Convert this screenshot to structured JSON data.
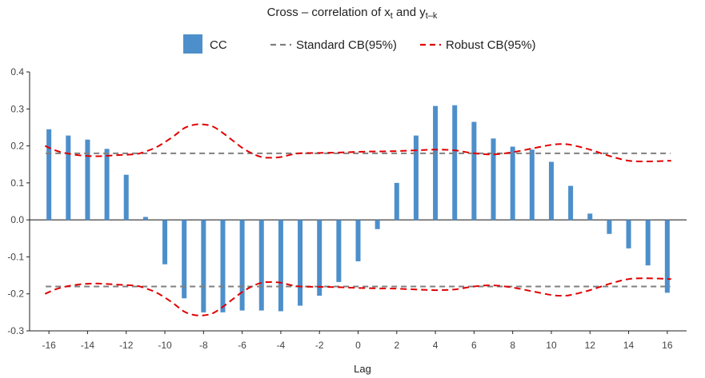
{
  "chart_data": {
    "type": "bar",
    "title_main": "Cross – correlation of x",
    "title_sub_x": "t",
    "title_and": " and y",
    "title_sub_y": "t–k",
    "xlabel": "Lag",
    "ylabel": "",
    "xlim": [
      -17,
      17
    ],
    "ylim": [
      -0.3,
      0.4
    ],
    "x_ticks": [
      -16,
      -14,
      -12,
      -10,
      -8,
      -6,
      -4,
      -2,
      0,
      2,
      4,
      6,
      8,
      10,
      12,
      14,
      16
    ],
    "y_ticks": [
      -0.3,
      -0.2,
      -0.1,
      0.0,
      0.1,
      0.2,
      0.3,
      0.4
    ],
    "y_tick_labels": [
      "-0.3",
      "-0.2",
      "-0.1",
      "0.0",
      "0.1",
      "0.2",
      "0.3",
      "0.4"
    ],
    "x_tick_labels": [
      "-16",
      "-14",
      "-12",
      "-10",
      "-8",
      "-6",
      "-4",
      "-2",
      "0",
      "2",
      "4",
      "6",
      "8",
      "10",
      "12",
      "14",
      "16"
    ],
    "lags": [
      -16,
      -15,
      -14,
      -13,
      -12,
      -11,
      -10,
      -9,
      -8,
      -7,
      -6,
      -5,
      -4,
      -3,
      -2,
      -1,
      0,
      1,
      2,
      3,
      4,
      5,
      6,
      7,
      8,
      9,
      10,
      11,
      12,
      13,
      14,
      15,
      16
    ],
    "cc_values": [
      0.245,
      0.228,
      0.217,
      0.192,
      0.122,
      0.008,
      -0.12,
      -0.212,
      -0.25,
      -0.25,
      -0.245,
      -0.245,
      -0.247,
      -0.232,
      -0.205,
      -0.168,
      -0.112,
      -0.025,
      0.1,
      0.228,
      0.308,
      0.31,
      0.265,
      0.22,
      0.198,
      0.19,
      0.157,
      0.092,
      0.017,
      -0.038,
      -0.077,
      -0.123,
      -0.197
    ],
    "standard_cb": 0.18,
    "robust_cb_upper": [
      [
        -16.2,
        0.2
      ],
      [
        -15.5,
        0.185
      ],
      [
        -14.5,
        0.175
      ],
      [
        -13.5,
        0.172
      ],
      [
        -12.5,
        0.175
      ],
      [
        -11.5,
        0.178
      ],
      [
        -11,
        0.185
      ],
      [
        -10.5,
        0.195
      ],
      [
        -10,
        0.21
      ],
      [
        -9.5,
        0.228
      ],
      [
        -9,
        0.248
      ],
      [
        -8.5,
        0.257
      ],
      [
        -8,
        0.258
      ],
      [
        -7.5,
        0.252
      ],
      [
        -7,
        0.235
      ],
      [
        -6.5,
        0.215
      ],
      [
        -6,
        0.195
      ],
      [
        -5.5,
        0.18
      ],
      [
        -5,
        0.17
      ],
      [
        -4.5,
        0.168
      ],
      [
        -4,
        0.17
      ],
      [
        -3.5,
        0.176
      ],
      [
        -3,
        0.18
      ],
      [
        -2,
        0.181
      ],
      [
        -1,
        0.182
      ],
      [
        0,
        0.184
      ],
      [
        1,
        0.185
      ],
      [
        2,
        0.186
      ],
      [
        3,
        0.188
      ],
      [
        4,
        0.19
      ],
      [
        5,
        0.188
      ],
      [
        6,
        0.18
      ],
      [
        7,
        0.177
      ],
      [
        8,
        0.183
      ],
      [
        9,
        0.193
      ],
      [
        10,
        0.203
      ],
      [
        10.5,
        0.205
      ],
      [
        11,
        0.203
      ],
      [
        12,
        0.19
      ],
      [
        13,
        0.173
      ],
      [
        14,
        0.16
      ],
      [
        15,
        0.158
      ],
      [
        16.2,
        0.16
      ]
    ],
    "legend": [
      {
        "label": "CC",
        "color": "#4d8fcb",
        "style": "bar"
      },
      {
        "label": "Standard CB(95%)",
        "color": "#7f7f7f",
        "style": "dashed"
      },
      {
        "label": "Robust CB(95%)",
        "color": "#e00000",
        "style": "dashed"
      }
    ],
    "legend_position": "top-center"
  }
}
